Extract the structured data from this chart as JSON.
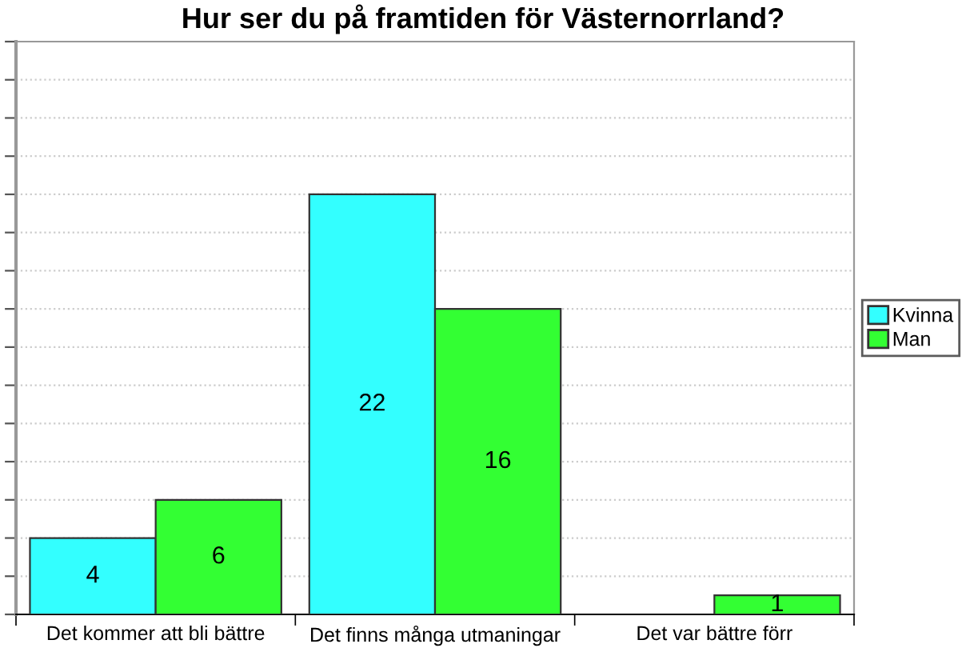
{
  "chart_data": {
    "type": "bar",
    "title": "Hur ser du på framtiden för Västernorrland?",
    "categories": [
      "Det kommer att bli bättre",
      "Det finns många utmaningar",
      "Det var bättre förr"
    ],
    "series": [
      {
        "name": "Kvinna",
        "color": "#33ffff",
        "values": [
          4,
          22,
          null
        ]
      },
      {
        "name": "Man",
        "color": "#33ff33",
        "values": [
          6,
          16,
          1
        ]
      }
    ],
    "ylim": [
      0,
      30
    ],
    "yticks": [
      {
        "value": 0,
        "label": null
      },
      {
        "value": 2,
        "label": null
      },
      {
        "value": 4,
        "label": null
      },
      {
        "value": 6,
        "label": null
      },
      {
        "value": 8,
        "label": null
      },
      {
        "value": 10,
        "label": null
      },
      {
        "value": 12,
        "label": null
      },
      {
        "value": 14,
        "label": null
      },
      {
        "value": 16,
        "label": null
      },
      {
        "value": 18,
        "label": null
      },
      {
        "value": 20,
        "label": null
      },
      {
        "value": 22,
        "label": null
      },
      {
        "value": 24,
        "label": null
      },
      {
        "value": 26,
        "label": null
      },
      {
        "value": 28,
        "label": null
      },
      {
        "value": 30,
        "label": null
      }
    ],
    "tick_labels": "x",
    "grid": "y",
    "legend": "right",
    "data_labels": true
  }
}
